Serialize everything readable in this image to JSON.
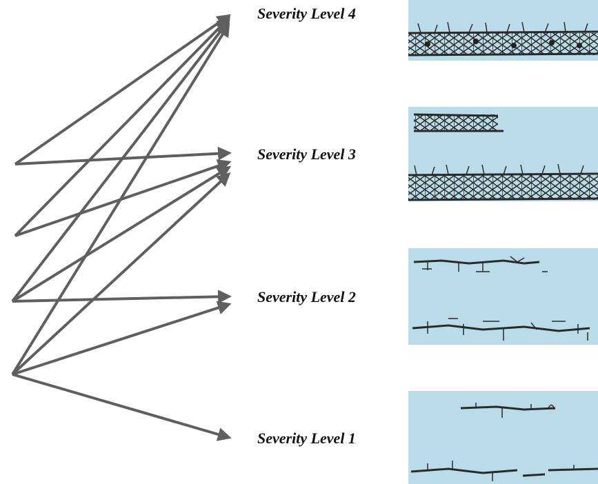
{
  "levels": [
    "Severity Level 4",
    "Severity Level 3",
    "Severity Level 2",
    "Severity Level 1"
  ]
}
